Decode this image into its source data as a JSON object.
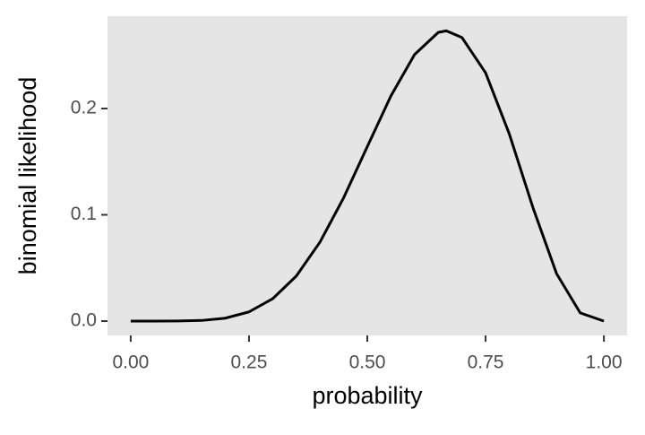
{
  "chart_data": {
    "type": "line",
    "x_label": "probability",
    "y_label": "binomial likelihood",
    "x": [
      0,
      0.05,
      0.1,
      0.15,
      0.2,
      0.25,
      0.3,
      0.35,
      0.4,
      0.45,
      0.5,
      0.55,
      0.6,
      0.65,
      0.667,
      0.7,
      0.75,
      0.8,
      0.85,
      0.9,
      0.95,
      1
    ],
    "series": [
      {
        "color": "#000000",
        "values": [
          0,
          1.1e-06,
          6.12e-05,
          0.000587,
          0.00275,
          0.00865,
          0.021,
          0.0424,
          0.0743,
          0.116,
          0.1641,
          0.2119,
          0.2508,
          0.2716,
          0.2731,
          0.2668,
          0.2336,
          0.1762,
          0.1069,
          0.0446,
          0.0077,
          0
        ]
      }
    ],
    "xlim": [
      -0.049,
      1.049
    ],
    "ylim": [
      -0.0135,
      0.2869
    ],
    "xticks": [
      {
        "value": 0,
        "label": "0.00"
      },
      {
        "value": 0.25,
        "label": "0.25"
      },
      {
        "value": 0.5,
        "label": "0.50"
      },
      {
        "value": 0.75,
        "label": "0.75"
      },
      {
        "value": 1,
        "label": "1.00"
      }
    ],
    "yticks": [
      {
        "value": 0,
        "label": "0.0"
      },
      {
        "value": 0.1,
        "label": "0.1"
      },
      {
        "value": 0.2,
        "label": "0.2"
      }
    ],
    "grid": false,
    "background": "#e5e5e5"
  }
}
